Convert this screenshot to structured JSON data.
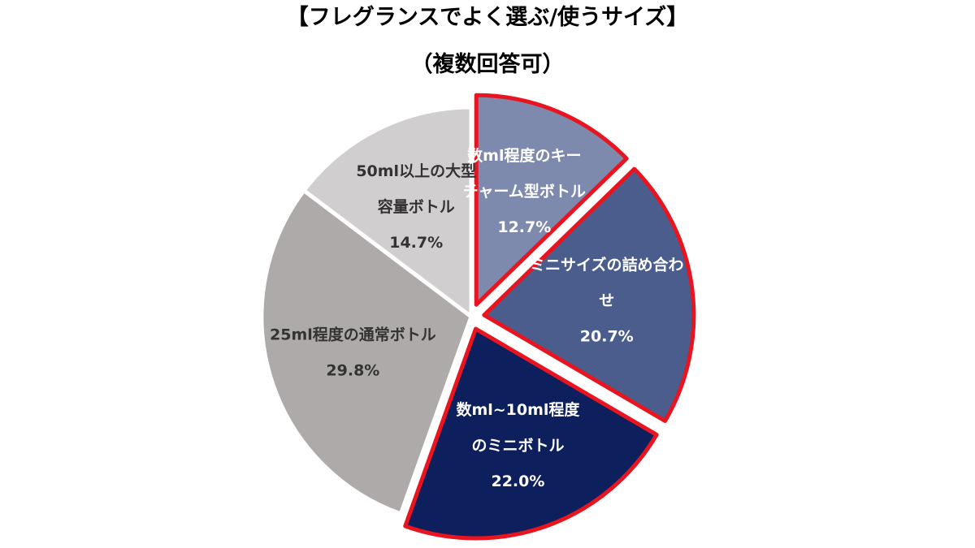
{
  "chart_data": {
    "type": "pie",
    "title": "【フレグランスでよく選ぶ/使うサイズ】",
    "subtitle": "（複数回答可）",
    "slices": [
      {
        "label_lines": [
          "数ml程度のキー",
          "チャーム型ボトル"
        ],
        "value": 12.7,
        "value_text": "12.7%",
        "color": "#7e8aad",
        "text_color": "#ffffff",
        "highlight": true
      },
      {
        "label_lines": [
          "ミニサイズの詰め合わ",
          "せ"
        ],
        "value": 20.7,
        "value_text": "20.7%",
        "color": "#4a5d8c",
        "text_color": "#ffffff",
        "highlight": true
      },
      {
        "label_lines": [
          "数ml~10ml程度",
          "のミニボトル"
        ],
        "value": 22.0,
        "value_text": "22.0%",
        "color": "#0d1f5c",
        "text_color": "#ffffff",
        "highlight": true
      },
      {
        "label_lines": [
          "25ml程度の通常ボトル"
        ],
        "value": 29.8,
        "value_text": "29.8%",
        "color": "#aeaaa9",
        "text_color": "#333333",
        "highlight": false
      },
      {
        "label_lines": [
          "50ml以上の大型",
          "容量ボトル"
        ],
        "value": 14.7,
        "value_text": "14.7%",
        "color": "#d0cece",
        "text_color": "#333333",
        "highlight": false
      }
    ],
    "highlight_border_color": "#e8141f",
    "legend": "none"
  }
}
